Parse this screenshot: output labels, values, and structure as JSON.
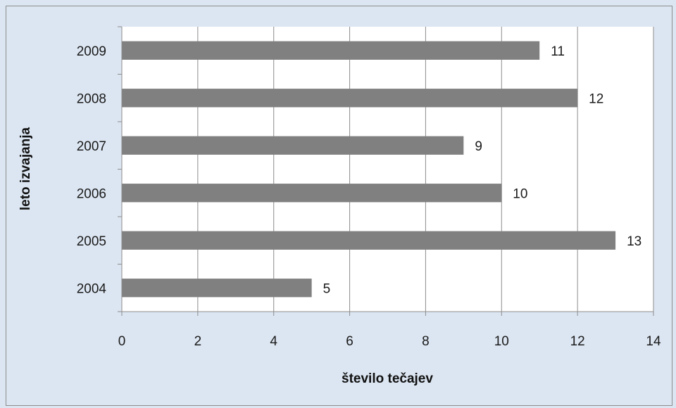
{
  "chart_data": {
    "type": "bar",
    "orientation": "horizontal",
    "title": "",
    "xlabel": "število tečajev",
    "ylabel": "leto izvajanja",
    "categories": [
      "2004",
      "2005",
      "2006",
      "2007",
      "2008",
      "2009"
    ],
    "values": [
      5,
      13,
      10,
      9,
      12,
      11
    ],
    "xlim": [
      0,
      14
    ],
    "xticks": [
      "0",
      "2",
      "4",
      "6",
      "8",
      "10",
      "12",
      "14"
    ],
    "grid": "vertical",
    "legend": "none",
    "bar_color": "#808080",
    "plot_background": "#ffffff",
    "chart_background": "#dce6f2"
  }
}
